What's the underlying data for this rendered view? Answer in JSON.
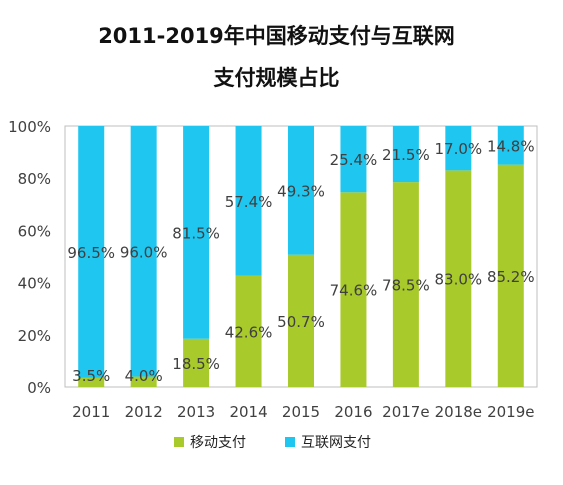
{
  "title": {
    "line1": "2011-2019年中国移动支付与互联网",
    "line2": "支付规模占比"
  },
  "colors": {
    "mobile": "#a8ca2a",
    "internet": "#1ec6f0",
    "axis": "#bfbfbf",
    "label": "#404040"
  },
  "legend": {
    "mobile_label": "移动支付",
    "internet_label": "互联网支付"
  },
  "chart_data": {
    "type": "bar",
    "stacked": true,
    "percent": true,
    "categories": [
      "2011",
      "2012",
      "2013",
      "2014",
      "2015",
      "2016",
      "2017e",
      "2018e",
      "2019e"
    ],
    "series": [
      {
        "name": "移动支付",
        "values": [
          3.5,
          4.0,
          18.5,
          42.6,
          50.7,
          74.6,
          78.5,
          83.0,
          85.2
        ],
        "labels": [
          "3.5%",
          "4.0%",
          "18.5%",
          "42.6%",
          "50.7%",
          "74.6%",
          "78.5%",
          "83.0%",
          "85.2%"
        ]
      },
      {
        "name": "互联网支付",
        "values": [
          96.5,
          96.0,
          81.5,
          57.4,
          49.3,
          25.4,
          21.5,
          17.0,
          14.8
        ],
        "labels": [
          "96.5%",
          "96.0%",
          "81.5%",
          "57.4%",
          "49.3%",
          "25.4%",
          "21.5%",
          "17.0%",
          "14.8%"
        ]
      }
    ],
    "ylim": [
      0,
      100
    ],
    "yticks": [
      "0%",
      "20%",
      "40%",
      "60%",
      "80%",
      "100%"
    ],
    "grid": false,
    "legend_position": "bottom"
  }
}
